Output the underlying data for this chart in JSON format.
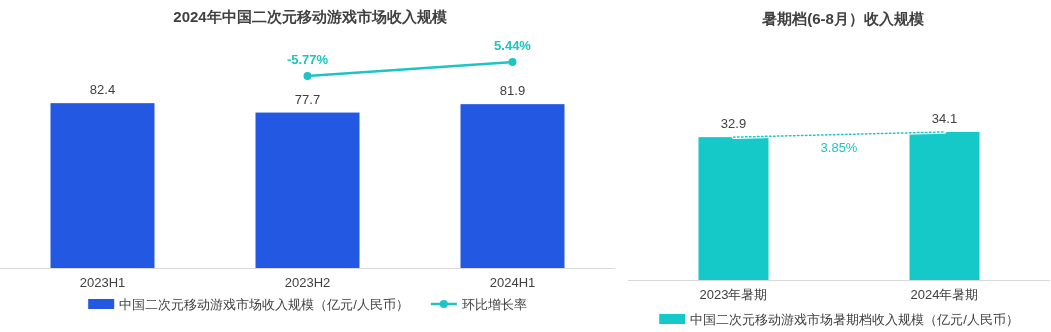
{
  "chart_data": [
    {
      "type": "bar",
      "categories": [
        "2023H1",
        "2023H2",
        "2024H1"
      ],
      "legend": "bottom",
      "series": [
        {
          "name": "中国二次元移动游戏市场收入规模（亿元/人民币）",
          "color": "#2358e2",
          "values": [
            82.4,
            77.7,
            81.9
          ],
          "value_labels": [
            "82.4",
            "77.7",
            "81.9"
          ]
        }
      ]
    },
    {
      "type": "line",
      "title": "2024年中国二次元移动游戏市场收入规模",
      "categories": [
        null,
        null,
        null
      ],
      "legend": "bottom",
      "marker": "circle",
      "line_style": "solid",
      "series": [
        {
          "name": "环比增长率",
          "color": "#1cc4c4",
          "values": [
            null,
            -5.77,
            5.44
          ],
          "value_labels": [
            null,
            "-5.77%",
            "5.44%"
          ]
        }
      ]
    },
    {
      "type": "bar",
      "title": "暑期档(6-8月）收入规模",
      "categories": [
        "2023年暑期",
        "2024年暑期"
      ],
      "legend": "bottom",
      "annotations": [
        "3.85%"
      ],
      "series": [
        {
          "name": "中国二次元移动游戏市场暑期档收入规模（亿元/人民币）",
          "color": "#14c9c8",
          "values": [
            32.9,
            34.1
          ],
          "value_labels": [
            "32.9",
            "34.1"
          ]
        },
        {
          "type": "line",
          "color": "#1cc4c4",
          "marker": "none",
          "line_style": "dotted",
          "values": [
            32.9,
            34.1
          ]
        }
      ]
    }
  ]
}
